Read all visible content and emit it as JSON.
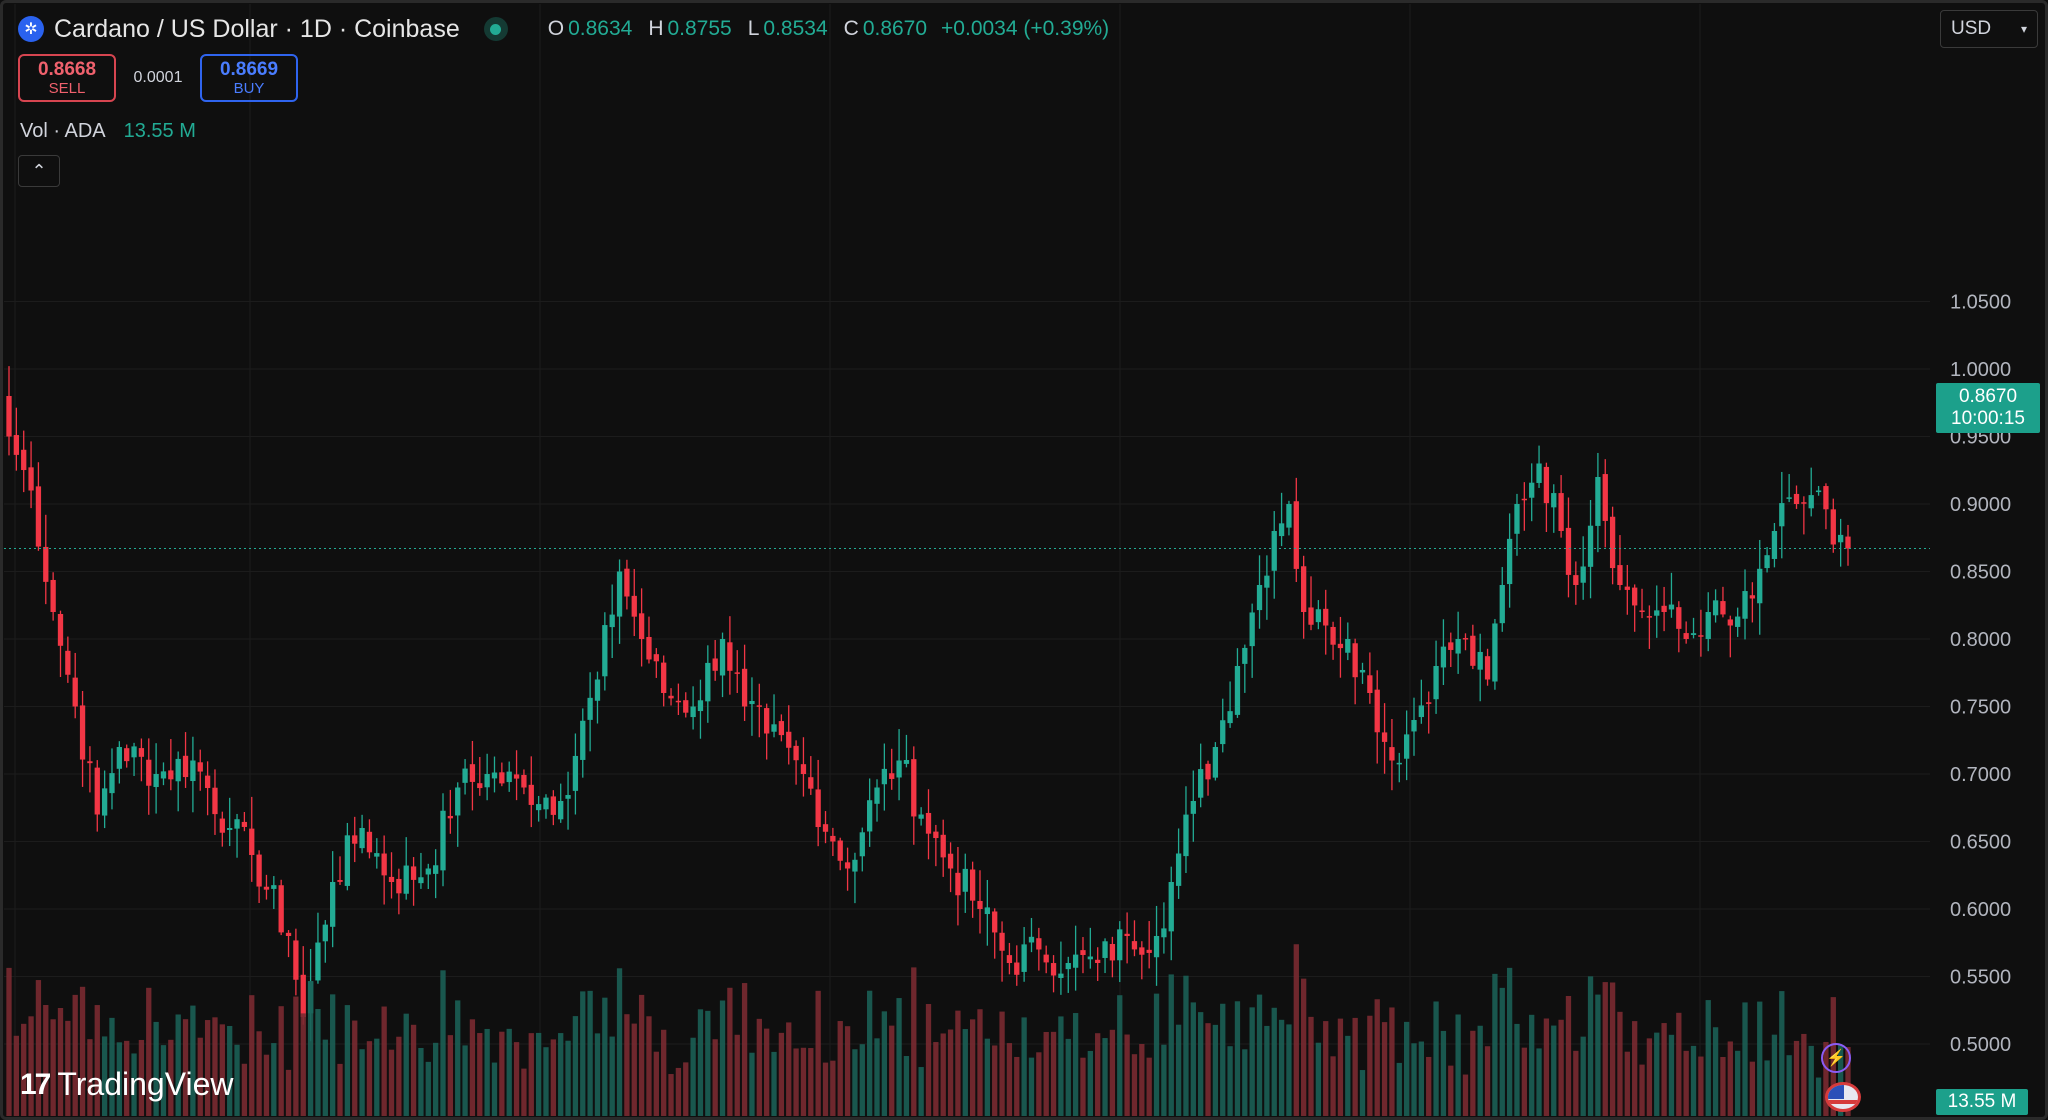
{
  "header": {
    "title": "Cardano / US Dollar · 1D · Coinbase",
    "ohlc": {
      "o_label": "O",
      "o": "0.8634",
      "h_label": "H",
      "h": "0.8755",
      "l_label": "L",
      "l": "0.8534",
      "c_label": "C",
      "c": "0.8670",
      "change": "+0.0034 (+0.39%)"
    }
  },
  "trade": {
    "sell_price": "0.8668",
    "sell_label": "SELL",
    "spread": "0.0001",
    "buy_price": "0.8669",
    "buy_label": "BUY"
  },
  "volume_legend": {
    "label": "Vol · ADA",
    "value": "13.55 M"
  },
  "currency": {
    "label": "USD"
  },
  "last_price": {
    "price": "0.8670",
    "countdown": "10:00:15"
  },
  "volume_last": "13.55 M",
  "brand": {
    "name": "TradingView"
  },
  "colors": {
    "up": "#22ab94",
    "down": "#f23645",
    "background": "#0f0f0f",
    "accent": "#1ca08b"
  },
  "icons": [
    "cardano-icon",
    "market-open-icon",
    "chevron-up-icon",
    "chevron-down-icon",
    "bolt-icon",
    "us-flag-icon",
    "tradingview-logo"
  ],
  "chart_data": {
    "type": "candlestick",
    "symbol": "ADA/USD",
    "interval": "1D",
    "y_ticks": [
      0.5,
      0.55,
      0.6,
      0.65,
      0.7,
      0.75,
      0.8,
      0.85,
      0.9,
      0.95,
      1.0,
      1.05
    ],
    "y_tick_labels": [
      "0.5000",
      "0.5500",
      "0.6000",
      "0.6500",
      "0.7000",
      "0.7500",
      "0.8000",
      "0.8500",
      "0.9000",
      "0.9500",
      "1.0000",
      "1.0500"
    ],
    "ylim": [
      0.46,
      1.07
    ],
    "last_close": 0.867,
    "grid": true,
    "volume_series": true,
    "anchor_closes": [
      [
        0,
        0.95
      ],
      [
        3,
        0.91
      ],
      [
        6,
        0.82
      ],
      [
        9,
        0.75
      ],
      [
        12,
        0.67
      ],
      [
        15,
        0.72
      ],
      [
        20,
        0.7
      ],
      [
        25,
        0.71
      ],
      [
        30,
        0.66
      ],
      [
        33,
        0.64
      ],
      [
        38,
        0.58
      ],
      [
        40,
        0.52
      ],
      [
        44,
        0.62
      ],
      [
        48,
        0.66
      ],
      [
        52,
        0.62
      ],
      [
        57,
        0.63
      ],
      [
        61,
        0.69
      ],
      [
        65,
        0.7
      ],
      [
        70,
        0.69
      ],
      [
        75,
        0.68
      ],
      [
        80,
        0.77
      ],
      [
        83,
        0.85
      ],
      [
        86,
        0.8
      ],
      [
        89,
        0.76
      ],
      [
        93,
        0.75
      ],
      [
        97,
        0.8
      ],
      [
        100,
        0.75
      ],
      [
        103,
        0.73
      ],
      [
        108,
        0.7
      ],
      [
        112,
        0.65
      ],
      [
        114,
        0.63
      ],
      [
        118,
        0.69
      ],
      [
        121,
        0.71
      ],
      [
        124,
        0.67
      ],
      [
        128,
        0.63
      ],
      [
        132,
        0.6
      ],
      [
        136,
        0.56
      ],
      [
        140,
        0.57
      ],
      [
        144,
        0.56
      ],
      [
        148,
        0.56
      ],
      [
        152,
        0.58
      ],
      [
        156,
        0.58
      ],
      [
        158,
        0.62
      ],
      [
        161,
        0.68
      ],
      [
        164,
        0.72
      ],
      [
        167,
        0.78
      ],
      [
        170,
        0.84
      ],
      [
        172,
        0.88
      ],
      [
        174,
        0.9
      ],
      [
        176,
        0.82
      ],
      [
        179,
        0.81
      ],
      [
        182,
        0.8
      ],
      [
        185,
        0.76
      ],
      [
        188,
        0.71
      ],
      [
        191,
        0.74
      ],
      [
        194,
        0.78
      ],
      [
        197,
        0.8
      ],
      [
        201,
        0.77
      ],
      [
        203,
        0.84
      ],
      [
        205,
        0.9
      ],
      [
        208,
        0.93
      ],
      [
        211,
        0.88
      ],
      [
        213,
        0.84
      ],
      [
        216,
        0.92
      ],
      [
        219,
        0.84
      ],
      [
        222,
        0.82
      ],
      [
        225,
        0.82
      ],
      [
        228,
        0.8
      ],
      [
        231,
        0.82
      ],
      [
        234,
        0.81
      ],
      [
        237,
        0.83
      ],
      [
        240,
        0.88
      ],
      [
        243,
        0.9
      ],
      [
        246,
        0.91
      ],
      [
        248,
        0.87
      ],
      [
        250,
        0.867
      ]
    ]
  }
}
